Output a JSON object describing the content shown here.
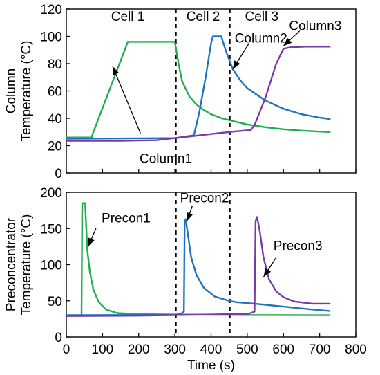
{
  "chart_data": [
    {
      "type": "line",
      "id": "top",
      "ylabel_lines": [
        "Column",
        "Temperature (°C)"
      ],
      "xlabel": "",
      "xlim": [
        0,
        800
      ],
      "ylim": [
        0,
        120
      ],
      "x_ticks": [
        0,
        100,
        200,
        300,
        400,
        500,
        600,
        700,
        800
      ],
      "x_tick_labels_shown": false,
      "y_ticks": [
        0,
        20,
        40,
        60,
        80,
        100,
        120
      ],
      "grid": false,
      "dividers": [
        303,
        452
      ],
      "sections": [
        {
          "label": "Cell 1",
          "x": 170,
          "y": 115
        },
        {
          "label": "Cell 2",
          "x": 378,
          "y": 115
        },
        {
          "label": "Cell 3",
          "x": 540,
          "y": 115
        }
      ],
      "series": [
        {
          "name": "Column1",
          "color": "#1fae4b",
          "points": [
            [
              0,
              26
            ],
            [
              70,
              26
            ],
            [
              72,
              28
            ],
            [
              170,
              96
            ],
            [
              300,
              96
            ],
            [
              310,
              80
            ],
            [
              320,
              67
            ],
            [
              340,
              56
            ],
            [
              360,
              50
            ],
            [
              380,
              46
            ],
            [
              400,
              43
            ],
            [
              430,
              40
            ],
            [
              460,
              38
            ],
            [
              500,
              35.5
            ],
            [
              550,
              33.5
            ],
            [
              600,
              32
            ],
            [
              650,
              31
            ],
            [
              700,
              30.3
            ],
            [
              728,
              30
            ]
          ]
        },
        {
          "name": "Column2",
          "color": "#1f73c0",
          "points": [
            [
              0,
              25
            ],
            [
              300,
              25.5
            ],
            [
              350,
              27.5
            ],
            [
              353,
              28
            ],
            [
              368,
              45
            ],
            [
              385,
              70
            ],
            [
              400,
              95
            ],
            [
              405,
              100
            ],
            [
              428,
              100
            ],
            [
              440,
              90
            ],
            [
              460,
              76
            ],
            [
              480,
              68
            ],
            [
              500,
              62
            ],
            [
              550,
              53
            ],
            [
              600,
              47
            ],
            [
              650,
              43
            ],
            [
              700,
              40.5
            ],
            [
              728,
              39.5
            ]
          ]
        },
        {
          "name": "Column3",
          "color": "#7b3aa3",
          "points": [
            [
              0,
              23.5
            ],
            [
              150,
              23.5
            ],
            [
              250,
              24
            ],
            [
              300,
              25.5
            ],
            [
              350,
              27
            ],
            [
              400,
              28.5
            ],
            [
              450,
              30
            ],
            [
              510,
              31.5
            ],
            [
              520,
              35
            ],
            [
              550,
              55
            ],
            [
              580,
              80
            ],
            [
              600,
              91
            ],
            [
              620,
              92
            ],
            [
              660,
              92.5
            ],
            [
              728,
              92.5
            ]
          ]
        }
      ],
      "annotations": [
        {
          "label": "Column1",
          "text_x": 275,
          "text_y": 11,
          "tip_x": 205,
          "tip_y": 29,
          "arrow_to_x": 128,
          "arrow_to_y": 78,
          "anchor": "middle"
        },
        {
          "label": "Column2",
          "text_x": 538,
          "text_y": 99,
          "tip_x": 505,
          "tip_y": 95,
          "arrow_to_x": 460,
          "arrow_to_y": 76,
          "anchor": "middle"
        },
        {
          "label": "Column3",
          "text_x": 688,
          "text_y": 108,
          "tip_x": 645,
          "tip_y": 104,
          "arrow_to_x": 600,
          "arrow_to_y": 93,
          "anchor": "middle"
        }
      ]
    },
    {
      "type": "line",
      "id": "bottom",
      "ylabel_lines": [
        "Preconcentrator",
        "Temperature (°C)"
      ],
      "xlabel": "Time (s)",
      "xlim": [
        0,
        800
      ],
      "ylim": [
        0,
        200
      ],
      "x_ticks": [
        0,
        100,
        200,
        300,
        400,
        500,
        600,
        700,
        800
      ],
      "x_tick_labels_shown": true,
      "y_ticks": [
        0,
        50,
        100,
        150,
        200
      ],
      "grid": false,
      "dividers": [
        303,
        452
      ],
      "series": [
        {
          "name": "Precon1",
          "color": "#1fae4b",
          "points": [
            [
              0,
              30
            ],
            [
              42,
              30
            ],
            [
              44,
              185
            ],
            [
              52,
              185
            ],
            [
              58,
              120
            ],
            [
              65,
              90
            ],
            [
              75,
              65
            ],
            [
              90,
              48
            ],
            [
              110,
              38
            ],
            [
              140,
              33
            ],
            [
              200,
              31.5
            ],
            [
              300,
              31
            ],
            [
              400,
              30.5
            ],
            [
              500,
              30.3
            ],
            [
              600,
              30.2
            ],
            [
              728,
              30
            ]
          ]
        },
        {
          "name": "Precon2",
          "color": "#1f73c0",
          "points": [
            [
              0,
              30
            ],
            [
              300,
              30.5
            ],
            [
              320,
              33
            ],
            [
              325,
              35
            ],
            [
              327,
              160
            ],
            [
              330,
              163
            ],
            [
              335,
              145
            ],
            [
              345,
              110
            ],
            [
              360,
              85
            ],
            [
              380,
              68
            ],
            [
              410,
              56
            ],
            [
              450,
              50
            ],
            [
              470,
              48
            ],
            [
              520,
              46
            ],
            [
              600,
              42
            ],
            [
              680,
              38
            ],
            [
              728,
              36
            ]
          ]
        },
        {
          "name": "Precon3",
          "color": "#7b3aa3",
          "points": [
            [
              0,
              29
            ],
            [
              200,
              29.5
            ],
            [
              400,
              31
            ],
            [
              500,
              32
            ],
            [
              510,
              33
            ],
            [
              520,
              35
            ],
            [
              523,
              160
            ],
            [
              527,
              166
            ],
            [
              535,
              145
            ],
            [
              545,
              110
            ],
            [
              560,
              80
            ],
            [
              580,
              63
            ],
            [
              600,
              55
            ],
            [
              630,
              49
            ],
            [
              680,
              46
            ],
            [
              728,
              46
            ]
          ]
        }
      ],
      "annotations": [
        {
          "label": "Precon1",
          "text_x": 165,
          "text_y": 165,
          "tip_x": 82,
          "tip_y": 150,
          "arrow_to_x": 60,
          "arrow_to_y": 125,
          "anchor": "middle"
        },
        {
          "label": "Precon2",
          "text_x": 382,
          "text_y": 193,
          "tip_x": 348,
          "tip_y": 181,
          "arrow_to_x": 333,
          "arrow_to_y": 160,
          "anchor": "middle"
        },
        {
          "label": "Precon3",
          "text_x": 640,
          "text_y": 127,
          "tip_x": 580,
          "tip_y": 110,
          "arrow_to_x": 545,
          "arrow_to_y": 83,
          "anchor": "middle"
        }
      ]
    }
  ]
}
